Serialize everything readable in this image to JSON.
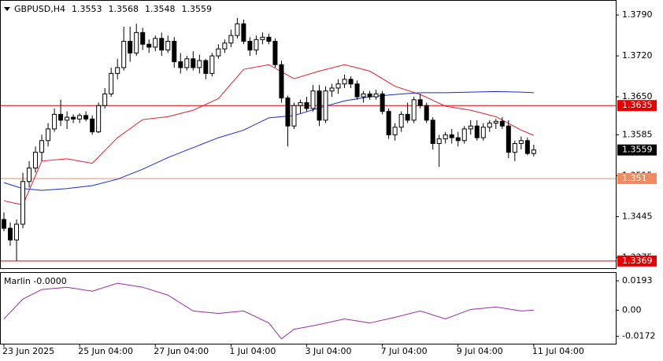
{
  "chart_data": {
    "type": "candlestick",
    "symbol": "GBPUSD,H4",
    "candles": [
      [
        1.344,
        1.3452,
        1.342,
        1.3425
      ],
      [
        1.3425,
        1.3435,
        1.3395,
        1.3405
      ],
      [
        1.3405,
        1.344,
        1.3369,
        1.3432
      ],
      [
        1.3432,
        1.352,
        1.3425,
        1.3505
      ],
      [
        1.3505,
        1.354,
        1.3495,
        1.3528
      ],
      [
        1.3528,
        1.3565,
        1.352,
        1.3555
      ],
      [
        1.3555,
        1.3585,
        1.354,
        1.3575
      ],
      [
        1.3575,
        1.3605,
        1.3565,
        1.3595
      ],
      [
        1.3595,
        1.363,
        1.359,
        1.362
      ],
      [
        1.362,
        1.3645,
        1.36,
        1.361
      ],
      [
        1.361,
        1.3625,
        1.3595,
        1.3615
      ],
      [
        1.3615,
        1.362,
        1.3605,
        1.3612
      ],
      [
        1.3612,
        1.3622,
        1.3605,
        1.3618
      ],
      [
        1.3618,
        1.3625,
        1.3608,
        1.3612
      ],
      [
        1.3612,
        1.3618,
        1.3585,
        1.359
      ],
      [
        1.359,
        1.364,
        1.3588,
        1.3635
      ],
      [
        1.3635,
        1.3665,
        1.363,
        1.3655
      ],
      [
        1.3655,
        1.37,
        1.365,
        1.369
      ],
      [
        1.369,
        1.3715,
        1.368,
        1.37
      ],
      [
        1.37,
        1.377,
        1.3695,
        1.3745
      ],
      [
        1.3745,
        1.377,
        1.371,
        1.3725
      ],
      [
        1.3725,
        1.3775,
        1.372,
        1.376
      ],
      [
        1.376,
        1.3768,
        1.373,
        1.374
      ],
      [
        1.374,
        1.3748,
        1.3725,
        1.3735
      ],
      [
        1.3735,
        1.3755,
        1.3728,
        1.375
      ],
      [
        1.375,
        1.376,
        1.372,
        1.373
      ],
      [
        1.373,
        1.3755,
        1.3725,
        1.3745
      ],
      [
        1.3745,
        1.3752,
        1.37,
        1.371
      ],
      [
        1.371,
        1.3725,
        1.369,
        1.37
      ],
      [
        1.37,
        1.372,
        1.3695,
        1.3715
      ],
      [
        1.3715,
        1.3728,
        1.3695,
        1.37
      ],
      [
        1.37,
        1.3722,
        1.369,
        1.3712
      ],
      [
        1.3712,
        1.3715,
        1.368,
        1.369
      ],
      [
        1.369,
        1.3725,
        1.3685,
        1.372
      ],
      [
        1.372,
        1.374,
        1.3715,
        1.3732
      ],
      [
        1.3732,
        1.3748,
        1.3725,
        1.3742
      ],
      [
        1.3742,
        1.3765,
        1.3735,
        1.3755
      ],
      [
        1.3755,
        1.3785,
        1.375,
        1.3775
      ],
      [
        1.3775,
        1.3782,
        1.374,
        1.3745
      ],
      [
        1.3745,
        1.3752,
        1.372,
        1.373
      ],
      [
        1.373,
        1.3755,
        1.3722,
        1.3748
      ],
      [
        1.3748,
        1.376,
        1.374,
        1.3752
      ],
      [
        1.3752,
        1.3758,
        1.374,
        1.3745
      ],
      [
        1.3745,
        1.375,
        1.37,
        1.3705
      ],
      [
        1.3705,
        1.3712,
        1.364,
        1.3648
      ],
      [
        1.3648,
        1.3652,
        1.3565,
        1.36
      ],
      [
        1.36,
        1.364,
        1.3595,
        1.3635
      ],
      [
        1.3635,
        1.3645,
        1.3622,
        1.364
      ],
      [
        1.364,
        1.365,
        1.3625,
        1.363
      ],
      [
        1.363,
        1.367,
        1.3625,
        1.366
      ],
      [
        1.366,
        1.367,
        1.36,
        1.361
      ],
      [
        1.361,
        1.3668,
        1.3605,
        1.366
      ],
      [
        1.366,
        1.3672,
        1.365,
        1.3665
      ],
      [
        1.3665,
        1.368,
        1.3655,
        1.3672
      ],
      [
        1.3672,
        1.3688,
        1.3665,
        1.368
      ],
      [
        1.368,
        1.3685,
        1.3665,
        1.3672
      ],
      [
        1.3672,
        1.3678,
        1.3645,
        1.365
      ],
      [
        1.365,
        1.366,
        1.364,
        1.3655
      ],
      [
        1.3655,
        1.366,
        1.3645,
        1.365
      ],
      [
        1.365,
        1.3662,
        1.3645,
        1.3655
      ],
      [
        1.3655,
        1.366,
        1.362,
        1.3625
      ],
      [
        1.3625,
        1.363,
        1.3578,
        1.3585
      ],
      [
        1.3585,
        1.3605,
        1.3575,
        1.3598
      ],
      [
        1.3598,
        1.3625,
        1.359,
        1.362
      ],
      [
        1.362,
        1.364,
        1.3605,
        1.361
      ],
      [
        1.361,
        1.365,
        1.3605,
        1.3645
      ],
      [
        1.3645,
        1.3655,
        1.363,
        1.3635
      ],
      [
        1.3635,
        1.364,
        1.3605,
        1.361
      ],
      [
        1.361,
        1.3615,
        1.356,
        1.357
      ],
      [
        1.357,
        1.3585,
        1.353,
        1.3578
      ],
      [
        1.3578,
        1.359,
        1.357,
        1.3585
      ],
      [
        1.3585,
        1.3595,
        1.357,
        1.358
      ],
      [
        1.358,
        1.359,
        1.3565,
        1.3575
      ],
      [
        1.3575,
        1.36,
        1.357,
        1.3595
      ],
      [
        1.3595,
        1.361,
        1.3585,
        1.36
      ],
      [
        1.36,
        1.361,
        1.3575,
        1.358
      ],
      [
        1.358,
        1.3605,
        1.3575,
        1.3598
      ],
      [
        1.3598,
        1.361,
        1.359,
        1.3605
      ],
      [
        1.3605,
        1.3612,
        1.3595,
        1.3608
      ],
      [
        1.3608,
        1.3615,
        1.3595,
        1.36
      ],
      [
        1.36,
        1.361,
        1.3545,
        1.3555
      ],
      [
        1.3555,
        1.3575,
        1.354,
        1.357
      ],
      [
        1.357,
        1.3582,
        1.356,
        1.3575
      ],
      [
        1.3575,
        1.358,
        1.355,
        1.3553
      ],
      [
        1.3553,
        1.3568,
        1.3548,
        1.3559
      ]
    ],
    "series": [
      {
        "color": "#e0202a",
        "x": [
          0,
          3,
          6,
          10,
          14,
          18,
          22,
          26,
          30,
          34,
          38,
          42,
          46,
          50,
          54,
          58,
          62,
          66,
          70,
          74,
          78,
          82,
          84
        ],
        "values": [
          1.3472,
          1.3465,
          1.354,
          1.3544,
          1.3536,
          1.358,
          1.3611,
          1.3616,
          1.3627,
          1.3647,
          1.3697,
          1.3705,
          1.3681,
          1.3694,
          1.3705,
          1.3694,
          1.3668,
          1.3654,
          1.3634,
          1.3627,
          1.3616,
          1.3593,
          1.3584
        ]
      },
      {
        "color": "#1a2ad0",
        "x": [
          0,
          3,
          6,
          10,
          14,
          18,
          22,
          26,
          30,
          34,
          38,
          42,
          46,
          50,
          54,
          58,
          62,
          66,
          70,
          74,
          78,
          82,
          84
        ],
        "values": [
          1.3503,
          1.3493,
          1.349,
          1.3493,
          1.3498,
          1.3509,
          1.3526,
          1.3546,
          1.3563,
          1.358,
          1.3593,
          1.3614,
          1.3618,
          1.3631,
          1.3643,
          1.365,
          1.3654,
          1.3657,
          1.3657,
          1.3658,
          1.3659,
          1.3658,
          1.3657
        ]
      }
    ],
    "levels": [
      {
        "value": 1.3635,
        "color": "#e00000"
      },
      {
        "value": 1.351,
        "color": "#f08a60"
      },
      {
        "value": 1.3369,
        "color": "#e00000"
      }
    ],
    "xlim": [
      0,
      97
    ],
    "ylim": [
      1.3358,
      1.3813
    ],
    "yticks": [
      {
        "value": 1.379,
        "label": "1.3790"
      },
      {
        "value": 1.372,
        "label": "1.3720"
      },
      {
        "value": 1.365,
        "label": "1.3650"
      },
      1.3585,
      1.3515,
      1.3445,
      1.3375
    ],
    "xticks": [
      {
        "value": 0,
        "label": "23 Jun 2025"
      },
      {
        "value": 12,
        "label": "25 Jun 04:00"
      },
      {
        "value": 24,
        "label": "27 Jun 04:00"
      },
      {
        "value": 36,
        "label": "1 Jul 04:00"
      },
      {
        "value": 48,
        "label": "3 Jul 04:00"
      },
      {
        "value": 60,
        "label": "7 Jul 04:00"
      },
      {
        "value": 72,
        "label": "9 Jul 04:00"
      },
      {
        "value": 84,
        "label": "11 Jul 04:00"
      }
    ],
    "indicator": {
      "title": "Marlin -0.0000",
      "color": "#9a2aa8",
      "x": [
        0,
        3,
        6,
        10,
        14,
        18,
        22,
        26,
        30,
        34,
        38,
        42,
        44,
        46,
        50,
        54,
        58,
        62,
        66,
        70,
        74,
        78,
        82,
        84
      ],
      "values": [
        -0.0057,
        0.0073,
        0.0136,
        0.0151,
        0.0125,
        0.0177,
        0.0151,
        0.0099,
        -0.0005,
        -0.0021,
        -0.0005,
        -0.0084,
        -0.0188,
        -0.0125,
        -0.0094,
        -0.0057,
        -0.0084,
        -0.0047,
        -0.0005,
        -0.0057,
        0.0005,
        0.0021,
        -0.0005,
        0
      ],
      "ylim": [
        -0.022,
        0.0245
      ],
      "yticks": [
        0.0193,
        {
          "value": 0,
          "label": "0.00"
        },
        -0.0172
      ]
    }
  }
}
